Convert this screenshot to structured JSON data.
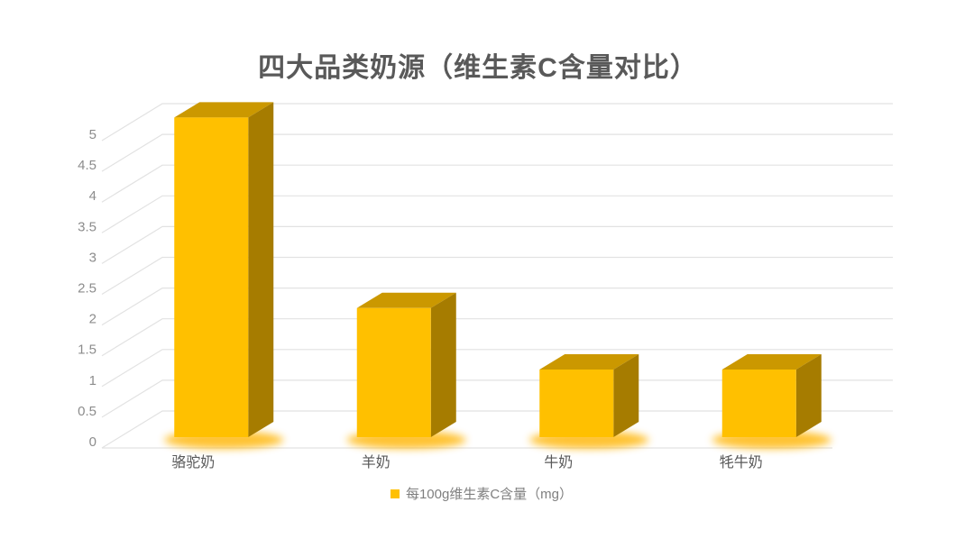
{
  "chart_data": {
    "type": "bar",
    "style": "3d-column",
    "title": "四大品类奶源（维生素C含量对比）",
    "categories": [
      "骆驼奶",
      "羊奶",
      "牛奶",
      "牦牛奶"
    ],
    "series": [
      {
        "name": "每100g维生素C含量（mg）",
        "values": [
          5.2,
          2.1,
          1.1,
          1.1
        ]
      }
    ],
    "legend": "每100g维生素C含量（mg）",
    "legend_position": "bottom",
    "xlabel": "",
    "ylabel": "",
    "ylim": [
      0,
      5
    ],
    "ytick_step": 0.5,
    "yticklabels": [
      "0",
      "0.5",
      "1",
      "1.5",
      "2",
      "2.5",
      "3",
      "3.5",
      "4",
      "4.5",
      "5"
    ],
    "grid": true,
    "colors": {
      "bar_front": "#FFC000",
      "bar_top": "#CB9800",
      "bar_side": "#A67C00",
      "glow": "#FFB400",
      "gridline": "#E2E2E2",
      "title_text": "#595959",
      "axis_text": "#8C8C8C",
      "category_text": "#595959",
      "legend_text": "#7F7F7F",
      "background": "#FFFFFF"
    }
  }
}
